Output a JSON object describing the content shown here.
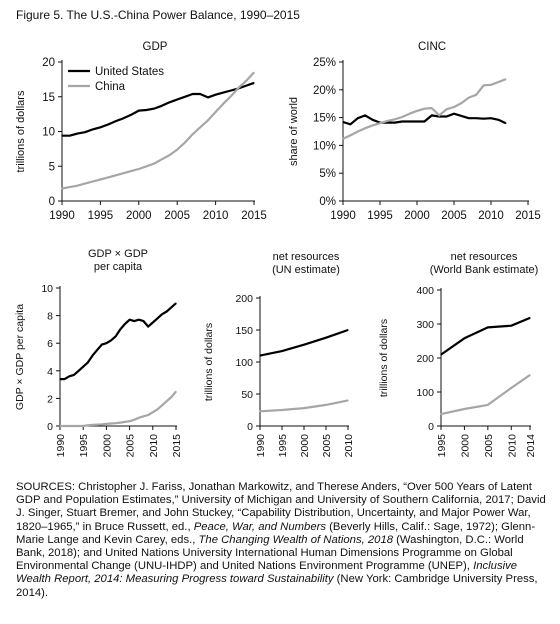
{
  "figure_title": "Figure 5.  The U.S.-China Power Balance, 1990–2015",
  "chart_data": [
    {
      "id": "gdp",
      "type": "line",
      "title": "GDP",
      "xlabel": "",
      "ylabel": "trillions of dollars",
      "xlim": [
        1990,
        2015
      ],
      "ylim": [
        0,
        20
      ],
      "xticks": [
        1990,
        1995,
        2000,
        2005,
        2010,
        2015
      ],
      "yticks": [
        0,
        5,
        10,
        15,
        20
      ],
      "ytick_labels": [
        "0",
        "5",
        "10",
        "15",
        "20"
      ],
      "legend": "top-left",
      "series": [
        {
          "name": "United States",
          "color": "#000000",
          "x": [
            1990,
            1991,
            1992,
            1993,
            1994,
            1995,
            1996,
            1997,
            1998,
            1999,
            2000,
            2001,
            2002,
            2003,
            2004,
            2005,
            2006,
            2007,
            2008,
            2009,
            2010,
            2011,
            2012,
            2013,
            2014,
            2015
          ],
          "y": [
            9.4,
            9.4,
            9.7,
            9.9,
            10.3,
            10.6,
            11.0,
            11.5,
            11.9,
            12.4,
            13.0,
            13.1,
            13.3,
            13.7,
            14.2,
            14.6,
            15.0,
            15.4,
            15.4,
            14.9,
            15.3,
            15.6,
            15.9,
            16.2,
            16.6,
            17.0
          ]
        },
        {
          "name": "China",
          "color": "#a6a6a6",
          "x": [
            1990,
            1991,
            1992,
            1993,
            1994,
            1995,
            1996,
            1997,
            1998,
            1999,
            2000,
            2001,
            2002,
            2003,
            2004,
            2005,
            2006,
            2007,
            2008,
            2009,
            2010,
            2011,
            2012,
            2013,
            2014,
            2015
          ],
          "y": [
            1.8,
            2.0,
            2.2,
            2.5,
            2.8,
            3.1,
            3.4,
            3.7,
            4.0,
            4.3,
            4.6,
            5.0,
            5.4,
            6.0,
            6.6,
            7.4,
            8.4,
            9.6,
            10.6,
            11.6,
            12.8,
            14.0,
            15.1,
            16.3,
            17.3,
            18.5
          ]
        }
      ]
    },
    {
      "id": "cinc",
      "type": "line",
      "title": "CINC",
      "xlabel": "",
      "ylabel": "share of world",
      "xlim": [
        1990,
        2015
      ],
      "ylim": [
        0,
        25
      ],
      "xticks": [
        1990,
        1995,
        2000,
        2005,
        2010,
        2015
      ],
      "yticks": [
        0,
        5,
        10,
        15,
        20,
        25
      ],
      "ytick_labels": [
        "0%",
        "5%",
        "10%",
        "15%",
        "20%",
        "25%"
      ],
      "series": [
        {
          "name": "",
          "color": "#000000",
          "x": [
            1990,
            1991,
            1992,
            1993,
            1994,
            1995,
            1996,
            1997,
            1998,
            1999,
            2000,
            2001,
            2002,
            2003,
            2004,
            2005,
            2006,
            2007,
            2008,
            2009,
            2010,
            2011,
            2012
          ],
          "y": [
            14.2,
            13.8,
            14.9,
            15.4,
            14.6,
            14.1,
            14.1,
            14.1,
            14.3,
            14.3,
            14.3,
            14.3,
            15.4,
            15.2,
            15.2,
            15.7,
            15.3,
            14.9,
            14.9,
            14.8,
            14.9,
            14.6,
            14.0
          ]
        },
        {
          "name": "",
          "color": "#a6a6a6",
          "x": [
            1990,
            1991,
            1992,
            1993,
            1994,
            1995,
            1996,
            1997,
            1998,
            1999,
            2000,
            2001,
            2002,
            2003,
            2004,
            2005,
            2006,
            2007,
            2008,
            2009,
            2010,
            2011,
            2012
          ],
          "y": [
            11.2,
            11.8,
            12.5,
            13.1,
            13.6,
            14.0,
            14.4,
            14.7,
            15.1,
            15.7,
            16.2,
            16.6,
            16.7,
            15.4,
            16.5,
            16.9,
            17.6,
            18.6,
            19.1,
            20.8,
            20.9,
            21.4,
            21.9
          ]
        }
      ]
    },
    {
      "id": "gdpxgdppc",
      "type": "line",
      "title": "GDP × GDP\nper capita",
      "xlabel": "",
      "ylabel": "GDP × GDP per capita",
      "xlim": [
        1990,
        2015
      ],
      "ylim": [
        0,
        10
      ],
      "xticks": [
        1990,
        1995,
        2000,
        2005,
        2010,
        2015
      ],
      "yticks": [
        0,
        2,
        4,
        6,
        8,
        10
      ],
      "ytick_labels": [
        "0",
        "2",
        "4",
        "6",
        "8",
        "10"
      ],
      "series": [
        {
          "name": "",
          "color": "#000000",
          "x": [
            1990,
            1991,
            1992,
            1993,
            1994,
            1995,
            1996,
            1997,
            1998,
            1999,
            2000,
            2001,
            2002,
            2003,
            2004,
            2005,
            2006,
            2007,
            2008,
            2009,
            2010,
            2011,
            2012,
            2013,
            2014,
            2015
          ],
          "y": [
            3.4,
            3.4,
            3.6,
            3.7,
            4.0,
            4.3,
            4.6,
            5.1,
            5.5,
            5.9,
            6.0,
            6.2,
            6.5,
            7.0,
            7.4,
            7.7,
            7.6,
            7.7,
            7.6,
            7.2,
            7.5,
            7.8,
            8.1,
            8.3,
            8.6,
            8.9
          ]
        },
        {
          "name": "",
          "color": "#a6a6a6",
          "x": [
            1990,
            1995,
            1996,
            1997,
            1998,
            1999,
            2000,
            2001,
            2002,
            2003,
            2004,
            2005,
            2006,
            2007,
            2008,
            2009,
            2010,
            2011,
            2012,
            2013,
            2014,
            2015
          ],
          "y": [
            0.0,
            0.0,
            0.05,
            0.08,
            0.1,
            0.12,
            0.15,
            0.18,
            0.2,
            0.25,
            0.3,
            0.35,
            0.45,
            0.6,
            0.7,
            0.8,
            1.0,
            1.2,
            1.5,
            1.8,
            2.1,
            2.5
          ]
        }
      ]
    },
    {
      "id": "net-un",
      "type": "line",
      "title": "net resources\n(UN estimate)",
      "xlabel": "",
      "ylabel": "trillions of dollars",
      "xlim": [
        1990,
        2010
      ],
      "ylim": [
        0,
        200
      ],
      "xticks": [
        1990,
        1995,
        2000,
        2005,
        2010
      ],
      "yticks": [
        0,
        50,
        100,
        150,
        200
      ],
      "ytick_labels": [
        "0",
        "50",
        "100",
        "150",
        "200"
      ],
      "series": [
        {
          "name": "",
          "color": "#000000",
          "x": [
            1990,
            1995,
            2000,
            2005,
            2010
          ],
          "y": [
            110,
            117,
            127,
            138,
            150
          ]
        },
        {
          "name": "",
          "color": "#a6a6a6",
          "x": [
            1990,
            1995,
            2000,
            2005,
            2010
          ],
          "y": [
            23,
            25,
            28,
            33,
            40
          ]
        }
      ]
    },
    {
      "id": "net-wb",
      "type": "line",
      "title": "net resources\n(World Bank estimate)",
      "xlabel": "",
      "ylabel": "trillions of dollars",
      "xlim": [
        1995,
        2014
      ],
      "xticks": [
        1995,
        2000,
        2005,
        2010,
        2014
      ],
      "ylim": [
        0,
        400
      ],
      "yticks": [
        0,
        100,
        200,
        300,
        400
      ],
      "ytick_labels": [
        "0",
        "100",
        "200",
        "300",
        "400"
      ],
      "series": [
        {
          "name": "",
          "color": "#000000",
          "x": [
            1995,
            2000,
            2005,
            2010,
            2014
          ],
          "y": [
            210,
            258,
            290,
            295,
            318
          ]
        },
        {
          "name": "",
          "color": "#a6a6a6",
          "x": [
            1995,
            2000,
            2005,
            2010,
            2014
          ],
          "y": [
            35,
            50,
            62,
            112,
            150
          ]
        }
      ]
    }
  ],
  "sources": {
    "label": "SOURCES:",
    "p1": " Christopher J. Fariss, Jonathan Markowitz, and Therese Anders, “Over 500 Years of Latent GDP and Population Estimates,” University of Michigan and University of Southern California, 2017; David J. Singer, Stuart Bremer, and John Stuckey, “Capability Distribution, Uncertainty, and Major Power War, 1820–1965,” in Bruce Russett, ed., ",
    "i1": "Peace, War, and Numbers",
    "p2": " (Beverly Hills, Calif.: Sage, 1972); Glenn-Marie Lange and Kevin Carey, eds., ",
    "i2": "The Changing Wealth of Nations, 2018",
    "p3": " (Washington, D.C.: World Bank, 2018); and United Nations University International Human Dimensions Programme on Global Environmental Change (UNU-IHDP) and United Nations Environment Programme (UNEP), ",
    "i3": "Inclusive Wealth Report, 2014: Measuring Progress toward Sustainability",
    "p4": " (New York: Cambridge University Press, 2014)."
  }
}
